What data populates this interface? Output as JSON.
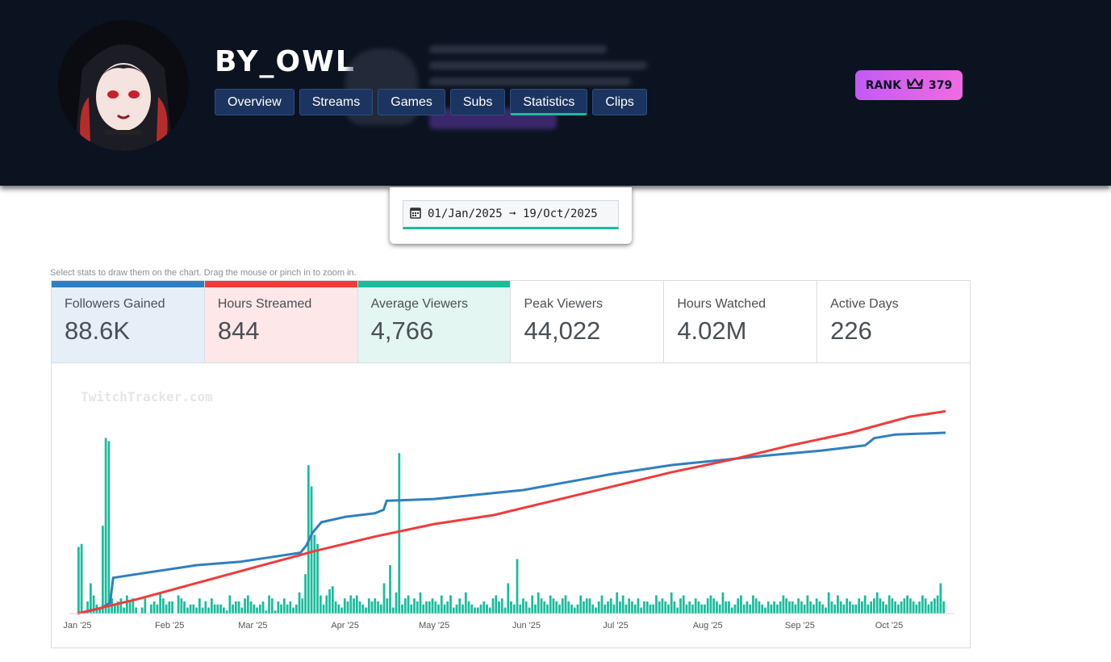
{
  "channel": {
    "name": "BY_OWL"
  },
  "nav": {
    "tabs": [
      {
        "label": "Overview",
        "active": false
      },
      {
        "label": "Streams",
        "active": false
      },
      {
        "label": "Games",
        "active": false
      },
      {
        "label": "Subs",
        "active": false
      },
      {
        "label": "Statistics",
        "active": true
      },
      {
        "label": "Clips",
        "active": false
      }
    ]
  },
  "rank": {
    "label": "RANK",
    "value": "379"
  },
  "date_range": {
    "text": "01/Jan/2025 ➞ 19/Oct/2025"
  },
  "hint": "Select stats to draw them on the chart. Drag the mouse or pinch in to zoom in.",
  "stats": [
    {
      "label": "Followers Gained",
      "value": "88.6K",
      "color": "#2e7fc2",
      "bg": "#e6eff8",
      "selected": true
    },
    {
      "label": "Hours Streamed",
      "value": "844",
      "color": "#f03b3b",
      "bg": "#fde7e8",
      "selected": true
    },
    {
      "label": "Average Viewers",
      "value": "4,766",
      "color": "#1abc9c",
      "bg": "#e3f6f1",
      "selected": true
    },
    {
      "label": "Peak Viewers",
      "value": "44,022",
      "color": "",
      "bg": "#ffffff",
      "selected": false
    },
    {
      "label": "Hours Watched",
      "value": "4.02M",
      "color": "",
      "bg": "#ffffff",
      "selected": false
    },
    {
      "label": "Active Days",
      "value": "226",
      "color": "",
      "bg": "#ffffff",
      "selected": false
    }
  ],
  "chart_data": {
    "type": "bar+line",
    "watermark": "TwitchTracker.com",
    "x_tick_labels": [
      "Jan '25",
      "Feb '25",
      "Mar '25",
      "Apr '25",
      "May '25",
      "Jun '25",
      "Jul '25",
      "Aug '25",
      "Sep '25",
      "Oct '25"
    ],
    "x_range_days": [
      0,
      292
    ],
    "series": [
      {
        "name": "Followers Gained (cumulative)",
        "color": "#2e7fc2",
        "type": "line",
        "points": [
          [
            0,
            0
          ],
          [
            8,
            3
          ],
          [
            11,
            6
          ],
          [
            12,
            20
          ],
          [
            20,
            22
          ],
          [
            40,
            27
          ],
          [
            55,
            29
          ],
          [
            63,
            31
          ],
          [
            75,
            34
          ],
          [
            77,
            38
          ],
          [
            79,
            45
          ],
          [
            82,
            51
          ],
          [
            90,
            54
          ],
          [
            100,
            56
          ],
          [
            103,
            58
          ],
          [
            104,
            63
          ],
          [
            120,
            64
          ],
          [
            150,
            69
          ],
          [
            170,
            75
          ],
          [
            180,
            78
          ],
          [
            200,
            83
          ],
          [
            230,
            88
          ],
          [
            250,
            91
          ],
          [
            265,
            94
          ],
          [
            268,
            98
          ],
          [
            275,
            100
          ],
          [
            292,
            101
          ]
        ]
      },
      {
        "name": "Hours Streamed (cumulative)",
        "color": "#f03b3b",
        "type": "line",
        "points": [
          [
            0,
            0
          ],
          [
            10,
            4
          ],
          [
            20,
            8
          ],
          [
            40,
            17
          ],
          [
            60,
            26
          ],
          [
            80,
            35
          ],
          [
            100,
            43
          ],
          [
            120,
            50
          ],
          [
            140,
            55
          ],
          [
            160,
            63
          ],
          [
            180,
            71
          ],
          [
            200,
            79
          ],
          [
            220,
            86
          ],
          [
            240,
            94
          ],
          [
            260,
            101
          ],
          [
            280,
            110
          ],
          [
            292,
            113
          ]
        ]
      },
      {
        "name": "Average Viewers",
        "color": "#1abc9c",
        "type": "bar",
        "values": [
          2.2,
          2.3,
          0,
          0.4,
          1.0,
          0.6,
          0.3,
          0.2,
          2.9,
          5.8,
          5.7,
          0.5,
          0.3,
          0.4,
          0.5,
          0.2,
          0.6,
          0.4,
          0.5,
          0.2,
          0,
          0.2,
          0.5,
          0,
          0.3,
          0.4,
          0.3,
          0.7,
          0.5,
          0.3,
          0.4,
          0.4,
          0,
          0.6,
          0.5,
          0.4,
          0.2,
          0.3,
          0.3,
          0.2,
          0.5,
          0.2,
          0.4,
          0.2,
          0.5,
          0.3,
          0.3,
          0.3,
          0.2,
          0.1,
          0.6,
          0.3,
          0.4,
          0.4,
          0.2,
          0.5,
          0.6,
          0.4,
          0.3,
          0.2,
          0.3,
          0.4,
          0.1,
          0.6,
          0.5,
          0.1,
          0.4,
          0.3,
          0.5,
          0.3,
          0.4,
          0.2,
          0.3,
          0.7,
          0.5,
          1.3,
          4.9,
          4.2,
          2.6,
          2.3,
          0.6,
          0.3,
          0.6,
          0.8,
          0.9,
          0.4,
          0.3,
          0.2,
          0.5,
          0.4,
          0.6,
          0.5,
          0.6,
          0.4,
          0.3,
          0.2,
          0.5,
          0.4,
          0.5,
          0.4,
          0.3,
          1.0,
          0.5,
          1.6,
          0.2,
          0.7,
          5.3,
          0.3,
          0.5,
          0.6,
          0.3,
          0.5,
          0.4,
          0.7,
          0.3,
          0.4,
          0.4,
          0.5,
          0.4,
          0.3,
          0.6,
          0.3,
          0.4,
          0.6,
          0.2,
          0.3,
          0.5,
          0.3,
          0.7,
          0.4,
          0.3,
          0.2,
          0.2,
          0.3,
          0.4,
          0.3,
          0.2,
          0.5,
          0.6,
          0.4,
          0.5,
          0.2,
          1.0,
          0.4,
          0.3,
          1.8,
          0.3,
          0.5,
          0.4,
          0.2,
          0.6,
          0.3,
          0.7,
          0.5,
          0.4,
          0.3,
          0.6,
          0.5,
          0.4,
          0.3,
          0.5,
          0.6,
          0.4,
          0.3,
          0.2,
          0.3,
          0.6,
          0.4,
          0.5,
          0.5,
          0.3,
          0.2,
          0.4,
          0.6,
          0.3,
          0.4,
          0.5,
          0.3,
          0.7,
          0.4,
          0.6,
          0.3,
          0.5,
          0.4,
          0.3,
          0.5,
          0.2,
          0.4,
          0.4,
          0.3,
          0.3,
          0.6,
          0.4,
          0.5,
          0.4,
          0.3,
          0.7,
          0.4,
          0.2,
          0.5,
          0.6,
          0.3,
          0.4,
          0.3,
          0.5,
          0.4,
          0.3,
          0.3,
          0.5,
          0.6,
          0.5,
          0.4,
          0.3,
          0.7,
          0.4,
          0.4,
          0.2,
          0.3,
          0.5,
          0.6,
          0.3,
          0.4,
          0.3,
          0.6,
          0.5,
          0.4,
          0.3,
          0.2,
          0.4,
          0.3,
          0.4,
          0.3,
          0.4,
          0.6,
          0.5,
          0.4,
          0.4,
          0.3,
          0.5,
          0.4,
          0.3,
          0.6,
          0.4,
          0.3,
          0.5,
          0.4,
          0.3,
          0.2,
          0.7,
          0.4,
          0.3,
          0.6,
          0.4,
          0.3,
          0.5,
          0.4,
          0.3,
          0.3,
          0.5,
          0.4,
          0.6,
          0.3,
          0.4,
          0.5,
          0.7,
          0.5,
          0.4,
          0.3,
          0.6,
          0.5,
          0.4,
          0.3,
          0.4,
          0.5,
          0.6,
          0.5,
          0.4,
          0.3,
          0.4,
          0.6,
          0.5,
          0.3,
          0.4,
          0.5,
          0.6,
          1.0,
          0.4
        ]
      }
    ]
  }
}
